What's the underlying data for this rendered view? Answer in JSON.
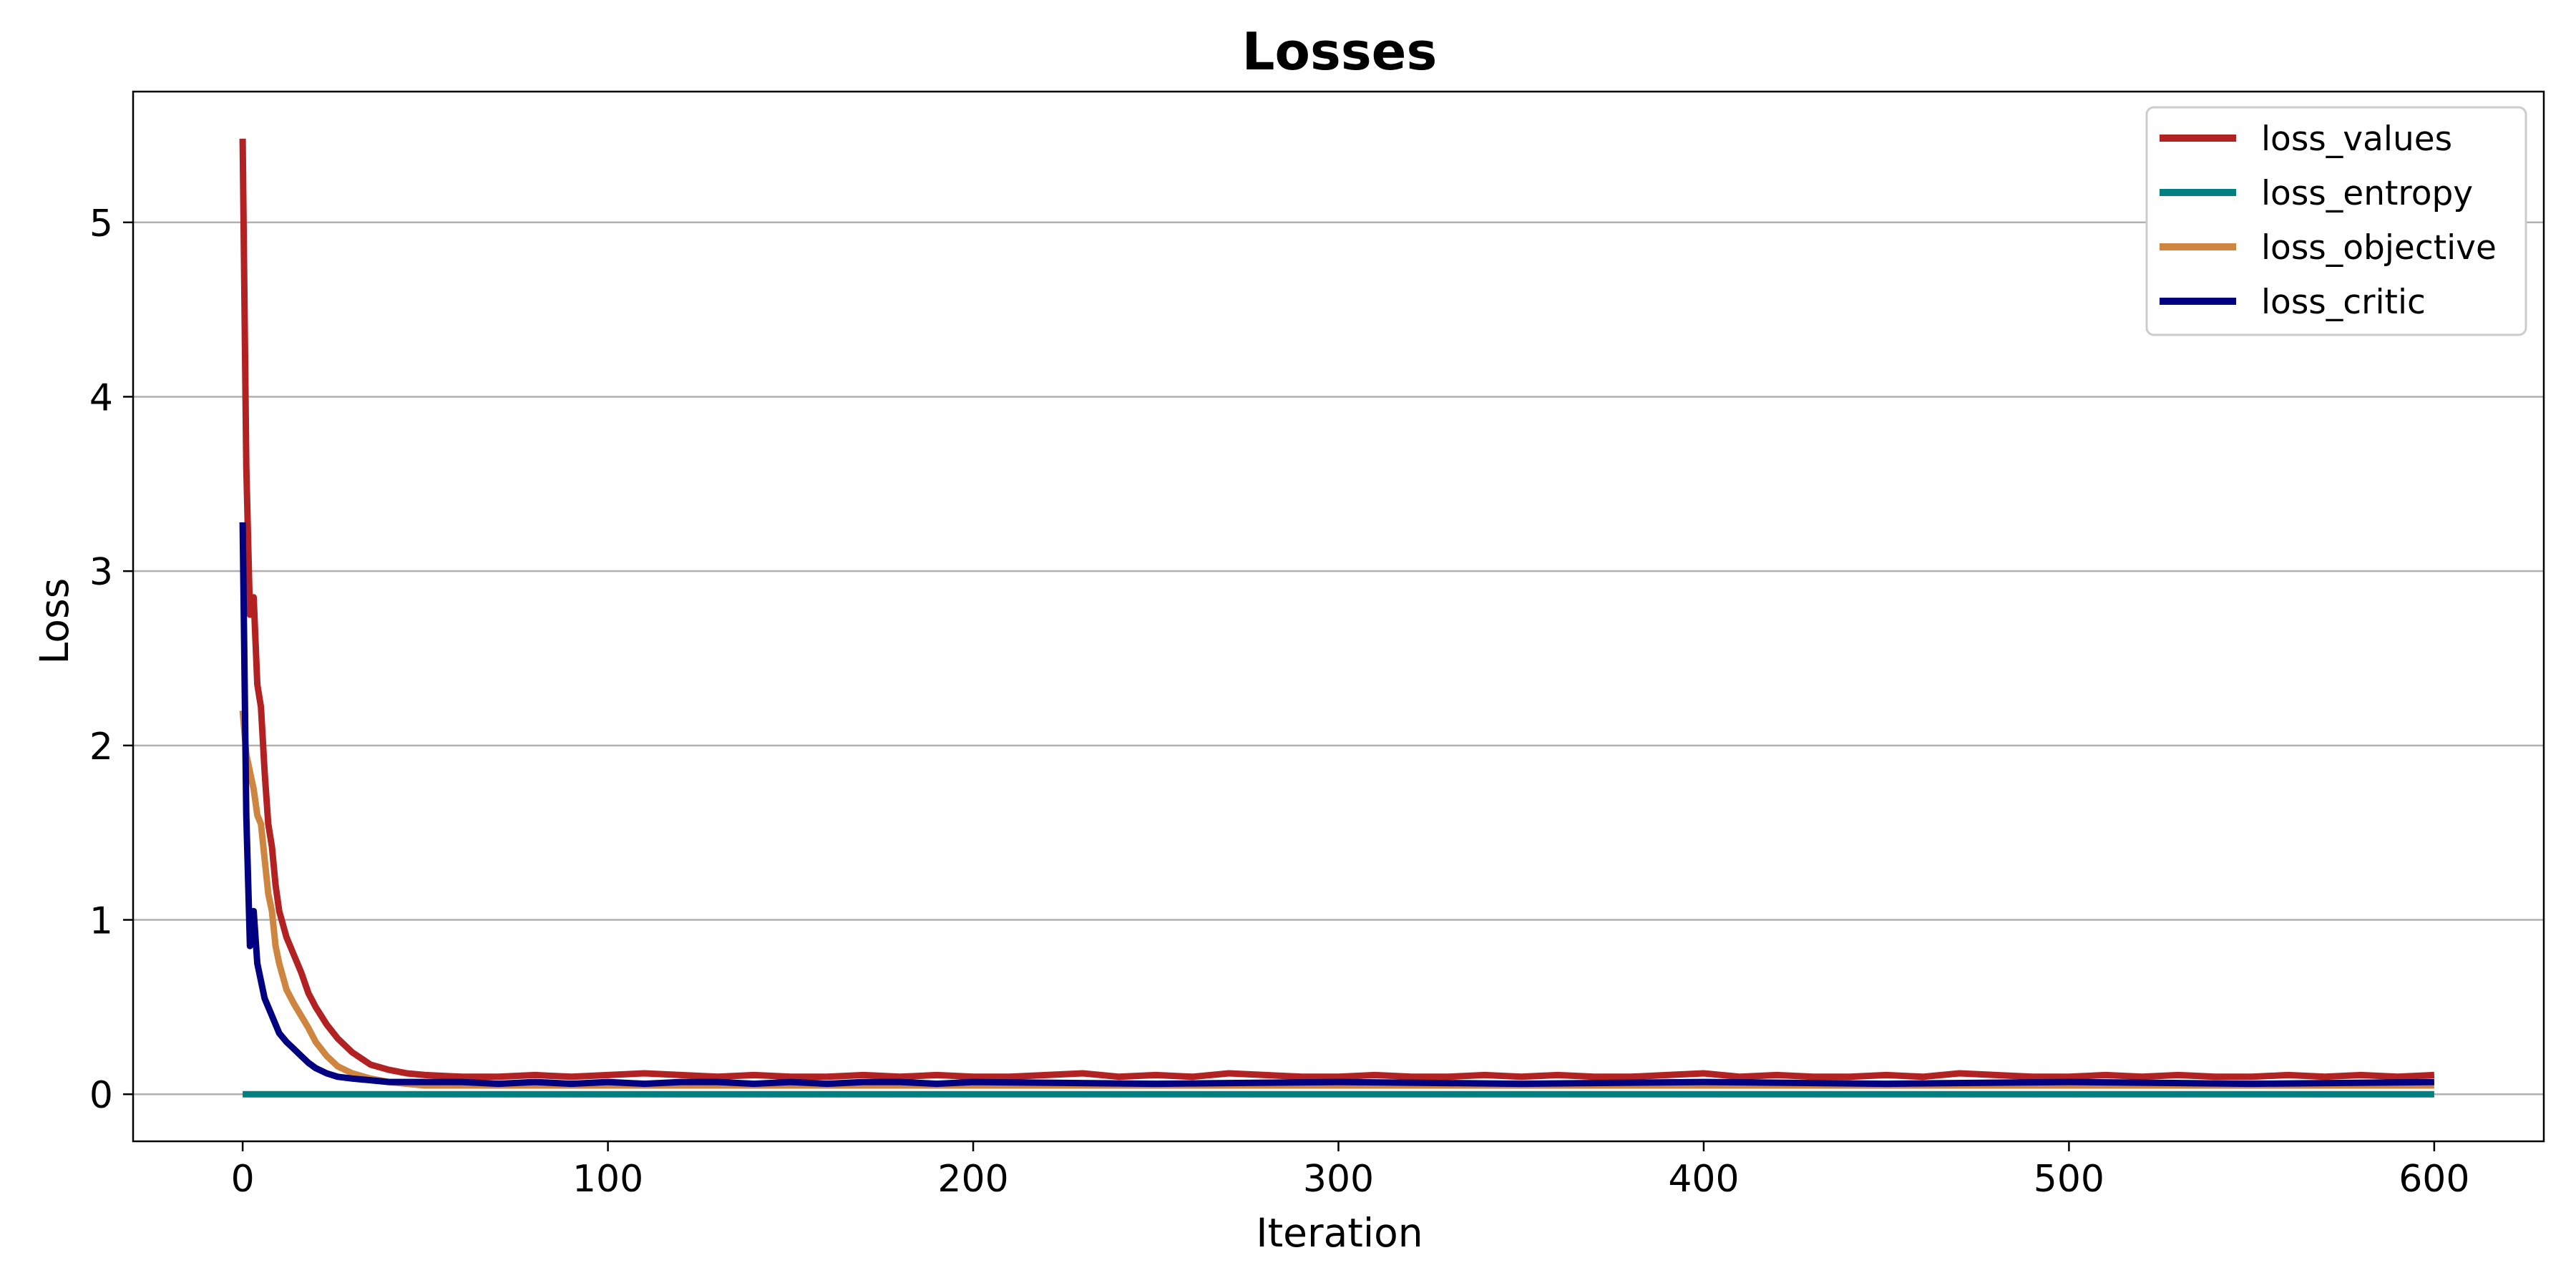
{
  "chart_data": {
    "type": "line",
    "title": "Losses",
    "xlabel": "Iteration",
    "ylabel": "Loss",
    "xlim": [
      -30,
      630
    ],
    "ylim": [
      -0.27,
      5.75
    ],
    "xticks": [
      0,
      100,
      200,
      300,
      400,
      500,
      600
    ],
    "yticks": [
      0,
      1,
      2,
      3,
      4,
      5
    ],
    "grid": "horizontal",
    "legend_position": "top-right",
    "series": [
      {
        "name": "loss_values",
        "color": "#b22222",
        "x": [
          0,
          1,
          2,
          3,
          4,
          5,
          6,
          7,
          8,
          9,
          10,
          12,
          14,
          16,
          18,
          20,
          23,
          26,
          30,
          35,
          40,
          45,
          50,
          60,
          70,
          80,
          90,
          100,
          110,
          120,
          130,
          140,
          150,
          160,
          170,
          180,
          190,
          200,
          210,
          220,
          230,
          240,
          250,
          260,
          270,
          280,
          290,
          300,
          310,
          320,
          330,
          340,
          350,
          360,
          370,
          380,
          390,
          400,
          410,
          420,
          430,
          440,
          450,
          460,
          470,
          480,
          490,
          500,
          510,
          520,
          530,
          540,
          550,
          560,
          570,
          580,
          590,
          600
        ],
        "values": [
          5.48,
          3.6,
          2.75,
          2.85,
          2.35,
          2.22,
          1.85,
          1.55,
          1.42,
          1.2,
          1.05,
          0.9,
          0.8,
          0.7,
          0.58,
          0.5,
          0.4,
          0.32,
          0.24,
          0.17,
          0.14,
          0.12,
          0.11,
          0.1,
          0.1,
          0.11,
          0.1,
          0.11,
          0.12,
          0.11,
          0.1,
          0.11,
          0.1,
          0.1,
          0.11,
          0.1,
          0.11,
          0.1,
          0.1,
          0.11,
          0.12,
          0.1,
          0.11,
          0.1,
          0.12,
          0.11,
          0.1,
          0.1,
          0.11,
          0.1,
          0.1,
          0.11,
          0.1,
          0.11,
          0.1,
          0.1,
          0.11,
          0.12,
          0.1,
          0.11,
          0.1,
          0.1,
          0.11,
          0.1,
          0.12,
          0.11,
          0.1,
          0.1,
          0.11,
          0.1,
          0.11,
          0.1,
          0.1,
          0.11,
          0.1,
          0.11,
          0.1,
          0.11
        ]
      },
      {
        "name": "loss_entropy",
        "color": "#008080",
        "x": [
          0,
          100,
          200,
          300,
          400,
          500,
          600
        ],
        "values": [
          0.0,
          0.0,
          0.0,
          0.0,
          0.0,
          0.0,
          0.0
        ]
      },
      {
        "name": "loss_objective",
        "color": "#cd853f",
        "x": [
          0,
          1,
          2,
          3,
          4,
          5,
          6,
          7,
          8,
          9,
          10,
          12,
          14,
          16,
          18,
          20,
          23,
          26,
          30,
          35,
          40,
          45,
          50,
          60,
          70,
          80,
          90,
          100,
          150,
          200,
          250,
          300,
          350,
          400,
          450,
          500,
          550,
          600
        ],
        "values": [
          2.2,
          1.95,
          1.85,
          1.75,
          1.6,
          1.55,
          1.35,
          1.15,
          1.05,
          0.85,
          0.75,
          0.6,
          0.52,
          0.45,
          0.38,
          0.3,
          0.22,
          0.16,
          0.12,
          0.09,
          0.07,
          0.06,
          0.05,
          0.05,
          0.05,
          0.05,
          0.05,
          0.05,
          0.05,
          0.05,
          0.05,
          0.05,
          0.05,
          0.05,
          0.05,
          0.05,
          0.05,
          0.05
        ]
      },
      {
        "name": "loss_critic",
        "color": "#000080",
        "x": [
          0,
          1,
          2,
          3,
          4,
          5,
          6,
          7,
          8,
          9,
          10,
          12,
          14,
          16,
          18,
          20,
          23,
          26,
          30,
          35,
          40,
          45,
          50,
          60,
          70,
          80,
          90,
          100,
          110,
          120,
          130,
          140,
          150,
          160,
          170,
          180,
          190,
          200,
          250,
          300,
          350,
          400,
          450,
          500,
          550,
          600
        ],
        "values": [
          3.28,
          1.6,
          0.85,
          1.05,
          0.75,
          0.65,
          0.55,
          0.5,
          0.45,
          0.4,
          0.35,
          0.3,
          0.26,
          0.22,
          0.18,
          0.15,
          0.12,
          0.1,
          0.09,
          0.08,
          0.07,
          0.07,
          0.07,
          0.07,
          0.06,
          0.07,
          0.06,
          0.07,
          0.06,
          0.07,
          0.07,
          0.06,
          0.07,
          0.06,
          0.07,
          0.07,
          0.06,
          0.07,
          0.06,
          0.07,
          0.06,
          0.07,
          0.06,
          0.07,
          0.06,
          0.07
        ]
      }
    ]
  }
}
